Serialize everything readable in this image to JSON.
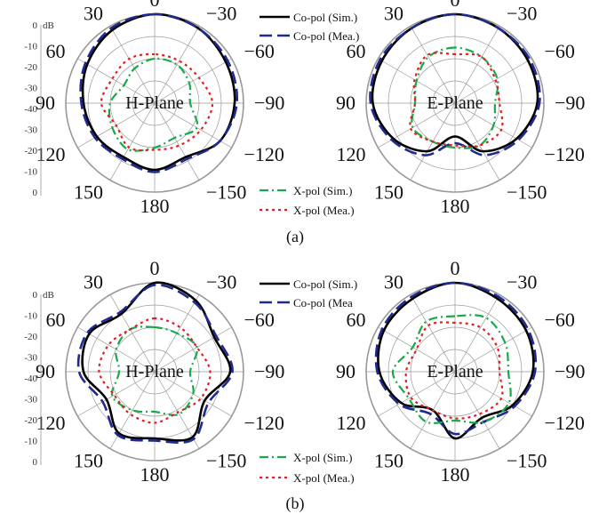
{
  "figure": {
    "sub_a": "(a)",
    "sub_b": "(b)"
  },
  "chart_data": [
    {
      "id": "a-h",
      "type": "polar",
      "title": "H-Plane",
      "group": "a",
      "angle_labels": [
        "0",
        "30",
        "60",
        "90",
        "120",
        "150",
        "180",
        "-150",
        "-120",
        "-90",
        "-60",
        "-30"
      ],
      "angle_display": [
        "0",
        "−30",
        "−60",
        "−90",
        "−120",
        "−150",
        "180",
        "150",
        "120",
        "90",
        "60",
        "30"
      ],
      "r_labels": [
        "0",
        "-10",
        "-20",
        "-30",
        "-40",
        "-30",
        "-20",
        "-10",
        "0"
      ],
      "r_unit": "dB",
      "rlim": [
        -40,
        0
      ],
      "series": [
        {
          "name": "Co-pol (Sim.)",
          "style": "solid",
          "color": "#000000",
          "angles": [
            0,
            30,
            60,
            90,
            120,
            150,
            180,
            210,
            240,
            270,
            300,
            330,
            360
          ],
          "values": [
            0,
            -2,
            -5,
            -8,
            -10,
            -12,
            -10,
            -12,
            -6,
            -4,
            -3,
            -1,
            0
          ]
        },
        {
          "name": "Co-pol (Mea.)",
          "style": "dash",
          "color": "#1f2a8f",
          "angles": [
            0,
            30,
            60,
            90,
            120,
            150,
            180,
            210,
            240,
            270,
            300,
            330,
            360
          ],
          "values": [
            0,
            -1,
            -4,
            -7,
            -9,
            -11,
            -9,
            -11,
            -6,
            -3,
            -2,
            -1,
            0
          ]
        },
        {
          "name": "X-pol (Sim.)",
          "style": "dashdot",
          "color": "#1aa84a",
          "angles": [
            0,
            30,
            60,
            90,
            120,
            150,
            180,
            210,
            240,
            270,
            300,
            330,
            360
          ],
          "values": [
            -20,
            -22,
            -24,
            -20,
            -18,
            -16,
            -20,
            -22,
            -18,
            -24,
            -22,
            -20,
            -20
          ]
        },
        {
          "name": "X-pol (Mea.)",
          "style": "dot",
          "color": "#e02020",
          "angles": [
            0,
            30,
            60,
            90,
            120,
            150,
            180,
            210,
            240,
            270,
            300,
            330,
            360
          ],
          "values": [
            -18,
            -17,
            -18,
            -16,
            -20,
            -17,
            -19,
            -18,
            -16,
            -14,
            -17,
            -18,
            -18
          ]
        }
      ]
    },
    {
      "id": "a-e",
      "type": "polar",
      "title": "E-Plane",
      "group": "a",
      "angle_labels": [
        "0",
        "30",
        "60",
        "90",
        "120",
        "150",
        "180",
        "-150",
        "-120",
        "-90",
        "-60",
        "-30"
      ],
      "angle_display": [
        "0",
        "−30",
        "−60",
        "−90",
        "−120",
        "−150",
        "180",
        "150",
        "120",
        "90",
        "60",
        "30"
      ],
      "rlim": [
        -40,
        0
      ],
      "series": [
        {
          "name": "Co-pol (Sim.)",
          "style": "solid",
          "color": "#000000",
          "angles": [
            0,
            30,
            60,
            90,
            120,
            150,
            180,
            210,
            240,
            270,
            300,
            330,
            360
          ],
          "values": [
            0,
            -1,
            -2,
            -3,
            -8,
            -15,
            -25,
            -15,
            -8,
            -3,
            -2,
            -1,
            0
          ]
        },
        {
          "name": "Co-pol (Mea.)",
          "style": "dash",
          "color": "#1f2a8f",
          "angles": [
            0,
            30,
            60,
            90,
            120,
            150,
            180,
            210,
            240,
            270,
            300,
            330,
            360
          ],
          "values": [
            0,
            -1,
            -1,
            -2,
            -7,
            -13,
            -22,
            -13,
            -7,
            -2,
            -1,
            -1,
            0
          ]
        },
        {
          "name": "X-pol (Sim.)",
          "style": "dashdot",
          "color": "#1aa84a",
          "angles": [
            0,
            30,
            60,
            90,
            120,
            150,
            180,
            210,
            240,
            270,
            300,
            330,
            360
          ],
          "values": [
            -15,
            -16,
            -20,
            -22,
            -18,
            -20,
            -20,
            -18,
            -20,
            -22,
            -18,
            -16,
            -15
          ]
        },
        {
          "name": "X-pol (Mea.)",
          "style": "dot",
          "color": "#e02020",
          "angles": [
            0,
            30,
            60,
            90,
            120,
            150,
            180,
            210,
            240,
            270,
            300,
            330,
            360
          ],
          "values": [
            -18,
            -15,
            -19,
            -22,
            -17,
            -20,
            -21,
            -18,
            -16,
            -20,
            -19,
            -16,
            -18
          ]
        }
      ]
    },
    {
      "id": "b-h",
      "type": "polar",
      "title": "H-Plane",
      "group": "b",
      "angle_labels": [
        "0",
        "30",
        "60",
        "90",
        "120",
        "150",
        "180",
        "-150",
        "-120",
        "-90",
        "-60",
        "-30"
      ],
      "angle_display": [
        "0",
        "−30",
        "−60",
        "−90",
        "−120",
        "−150",
        "180",
        "150",
        "120",
        "90",
        "60",
        "30"
      ],
      "rlim": [
        -40,
        0
      ],
      "series": [
        {
          "name": "Co-pol (Sim.)",
          "style": "solid",
          "color": "#000000",
          "angles": [
            0,
            30,
            60,
            90,
            120,
            150,
            180,
            210,
            240,
            270,
            300,
            330,
            360
          ],
          "values": [
            0,
            -10,
            -6,
            -8,
            -15,
            -8,
            -10,
            -6,
            -14,
            -6,
            -9,
            -3,
            0
          ]
        },
        {
          "name": "Co-pol (Mea",
          "style": "dash",
          "color": "#1f2a8f",
          "angles": [
            0,
            30,
            60,
            90,
            120,
            150,
            180,
            210,
            240,
            270,
            300,
            330,
            360
          ],
          "values": [
            -1,
            -9,
            -5,
            -6,
            -13,
            -7,
            -9,
            -5,
            -12,
            -5,
            -8,
            -4,
            -1
          ]
        },
        {
          "name": "X-pol (Sim.)",
          "style": "dashdot",
          "color": "#1aa84a",
          "angles": [
            0,
            30,
            60,
            90,
            120,
            150,
            180,
            210,
            240,
            270,
            300,
            330,
            360
          ],
          "values": [
            -20,
            -18,
            -20,
            -24,
            -18,
            -20,
            -22,
            -18,
            -20,
            -24,
            -18,
            -20,
            -20
          ]
        },
        {
          "name": "X-pol (Mea.)",
          "style": "dot",
          "color": "#e02020",
          "angles": [
            0,
            30,
            60,
            90,
            120,
            150,
            180,
            210,
            240,
            270,
            300,
            330,
            360
          ],
          "values": [
            -16,
            -18,
            -16,
            -15,
            -19,
            -18,
            -17,
            -19,
            -16,
            -15,
            -18,
            -17,
            -16
          ]
        }
      ]
    },
    {
      "id": "b-e",
      "type": "polar",
      "title": "E-Plane",
      "group": "b",
      "angle_labels": [
        "0",
        "30",
        "60",
        "90",
        "120",
        "150",
        "180",
        "-150",
        "-120",
        "-90",
        "-60",
        "-30"
      ],
      "angle_display": [
        "0",
        "−30",
        "−60",
        "−90",
        "−120",
        "−150",
        "180",
        "150",
        "120",
        "90",
        "60",
        "30"
      ],
      "rlim": [
        -40,
        0
      ],
      "series": [
        {
          "name": "Co-pol (Sim.)",
          "style": "solid",
          "color": "#000000",
          "angles": [
            0,
            30,
            60,
            90,
            120,
            150,
            180,
            210,
            240,
            270,
            300,
            330,
            360
          ],
          "values": [
            0,
            -2,
            -3,
            -6,
            -12,
            -20,
            -10,
            -16,
            -10,
            -5,
            -3,
            -2,
            0
          ]
        },
        {
          "name": "Co-pol (Mea",
          "style": "dash",
          "color": "#1f2a8f",
          "angles": [
            0,
            30,
            60,
            90,
            120,
            150,
            180,
            210,
            240,
            270,
            300,
            330,
            360
          ],
          "values": [
            0,
            -1,
            -2,
            -5,
            -11,
            -18,
            -12,
            -14,
            -9,
            -4,
            -2,
            -1,
            0
          ]
        },
        {
          "name": "X-pol (Sim.)",
          "style": "dashdot",
          "color": "#1aa84a",
          "angles": [
            0,
            30,
            60,
            90,
            120,
            150,
            180,
            210,
            240,
            270,
            300,
            330,
            360
          ],
          "values": [
            -15,
            -14,
            -18,
            -12,
            -16,
            -14,
            -18,
            -14,
            -12,
            -16,
            -14,
            -12,
            -15
          ]
        },
        {
          "name": "X-pol (Mea.)",
          "style": "dot",
          "color": "#e02020",
          "angles": [
            0,
            30,
            60,
            90,
            120,
            150,
            180,
            210,
            240,
            270,
            300,
            330,
            360
          ],
          "values": [
            -18,
            -16,
            -20,
            -18,
            -17,
            -20,
            -19,
            -18,
            -16,
            -20,
            -18,
            -17,
            -18
          ]
        }
      ]
    }
  ],
  "legend_a_top": [
    "Co-pol (Sim.)",
    "Co-pol (Mea.)"
  ],
  "legend_a_bottom": [
    "X-pol (Sim.)",
    "X-pol (Mea.)"
  ],
  "legend_b_top": [
    "Co-pol (Sim.)",
    "Co-pol (Mea"
  ],
  "legend_b_bottom": [
    "X-pol (Sim.)",
    "X-pol (Mea.)"
  ],
  "r_scale_labels": [
    "0",
    "-10",
    "-20",
    "-30",
    "-40",
    "-30",
    "-20",
    "-10",
    "0"
  ],
  "r_scale_unit": "dB",
  "colors": {
    "copol_sim": "#000000",
    "copol_mea": "#1f2a8f",
    "xpol_sim": "#1aa84a",
    "xpol_mea": "#e02020",
    "grid": "#999999"
  }
}
